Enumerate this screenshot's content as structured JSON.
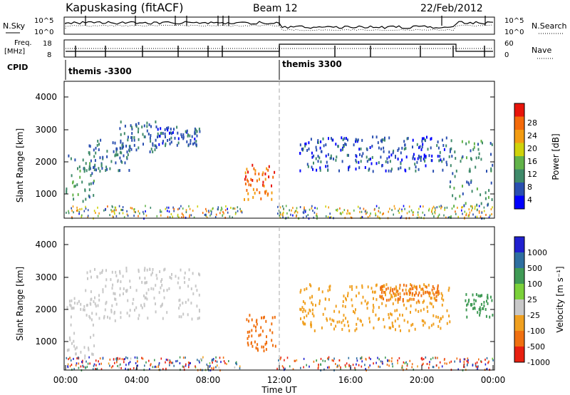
{
  "header": {
    "station": "Kapuskasing (fitACF)",
    "beam": "Beam 12",
    "date": "22/Feb/2012"
  },
  "noise_panel": {
    "left_label": "N.Sky",
    "right_label": "N.Search",
    "left_ticks": [
      "10^5",
      "10^0"
    ],
    "right_ticks": [
      "10^5",
      "10^0"
    ]
  },
  "freq_panel": {
    "left_label_line1": "Freq.",
    "left_label_line2": "[MHz]",
    "left_ticks": [
      "18",
      "8"
    ],
    "right_label": "Nave",
    "right_ticks": [
      "60",
      "0"
    ]
  },
  "cpid_panel": {
    "label": "CPID",
    "modes": [
      {
        "name": "themis -3300",
        "start_hr": 0,
        "end_hr": 12
      },
      {
        "name": "themis 3300",
        "start_hr": 12,
        "end_hr": 24
      }
    ]
  },
  "power_panel": {
    "ylabel": "Slant Range [km]",
    "yticks": [
      "4000",
      "3000",
      "2000",
      "1000"
    ],
    "colorbar_label": "Power [dB]",
    "colorbar_ticks": [
      "28",
      "24",
      "20",
      "16",
      "12",
      "8",
      "4"
    ],
    "colors": [
      "#0000ff",
      "#2a4fb0",
      "#3f8a6a",
      "#62b34a",
      "#cfd20a",
      "#f39c12",
      "#f46a0a",
      "#e8140a"
    ]
  },
  "velocity_panel": {
    "ylabel": "Slant Range [km]",
    "yticks": [
      "4000",
      "3000",
      "2000",
      "1000"
    ],
    "colorbar_label": "Velocity [m s⁻¹]",
    "colorbar_ticks": [
      "1000",
      "500",
      "100",
      "25",
      "-25",
      "-100",
      "-500",
      "-1000"
    ],
    "colors": [
      "#2020d0",
      "#2e6fa0",
      "#3f9a55",
      "#7bd13a",
      "#c8c8c8",
      "#f0a020",
      "#f07010",
      "#e82010"
    ]
  },
  "xaxis": {
    "label": "Time UT",
    "ticks": [
      "00:00",
      "04:00",
      "08:00",
      "12:00",
      "16:00",
      "20:00",
      "00:00"
    ]
  },
  "chart_data": {
    "type": "heatmap",
    "x_range_hours": [
      0,
      24
    ],
    "y_range_km": [
      180,
      4500
    ],
    "power_regions": [
      {
        "t0": 0.0,
        "t1": 1.6,
        "r0": 600,
        "r1": 2300,
        "val": 10
      },
      {
        "t0": 1.0,
        "t1": 3.6,
        "r0": 1700,
        "r1": 2700,
        "val": 8
      },
      {
        "t0": 3.0,
        "t1": 5.2,
        "r0": 2300,
        "r1": 3300,
        "val": 8
      },
      {
        "t0": 5.0,
        "t1": 7.5,
        "r0": 2500,
        "r1": 3100,
        "val": 6
      },
      {
        "t0": 10.0,
        "t1": 11.8,
        "r0": 800,
        "r1": 1900,
        "val": 26
      },
      {
        "t0": 13.1,
        "t1": 21.6,
        "r0": 1700,
        "r1": 2800,
        "val": 6
      },
      {
        "t0": 21.5,
        "t1": 24.0,
        "r0": 600,
        "r1": 2700,
        "val": 10
      }
    ],
    "velocity_regions": [
      {
        "t0": 0.0,
        "t1": 1.6,
        "r0": 600,
        "r1": 2400,
        "val": 0
      },
      {
        "t0": 1.0,
        "t1": 7.5,
        "r0": 1700,
        "r1": 3300,
        "val": 0
      },
      {
        "t0": 10.0,
        "t1": 11.8,
        "r0": 800,
        "r1": 1900,
        "val": -300
      },
      {
        "t0": 13.1,
        "t1": 21.6,
        "r0": 1400,
        "r1": 2800,
        "val": -40
      },
      {
        "t0": 17.5,
        "t1": 21.0,
        "r0": 2300,
        "r1": 2800,
        "val": -120
      },
      {
        "t0": 22.4,
        "t1": 24.0,
        "r0": 1800,
        "r1": 2500,
        "val": 110
      }
    ]
  }
}
